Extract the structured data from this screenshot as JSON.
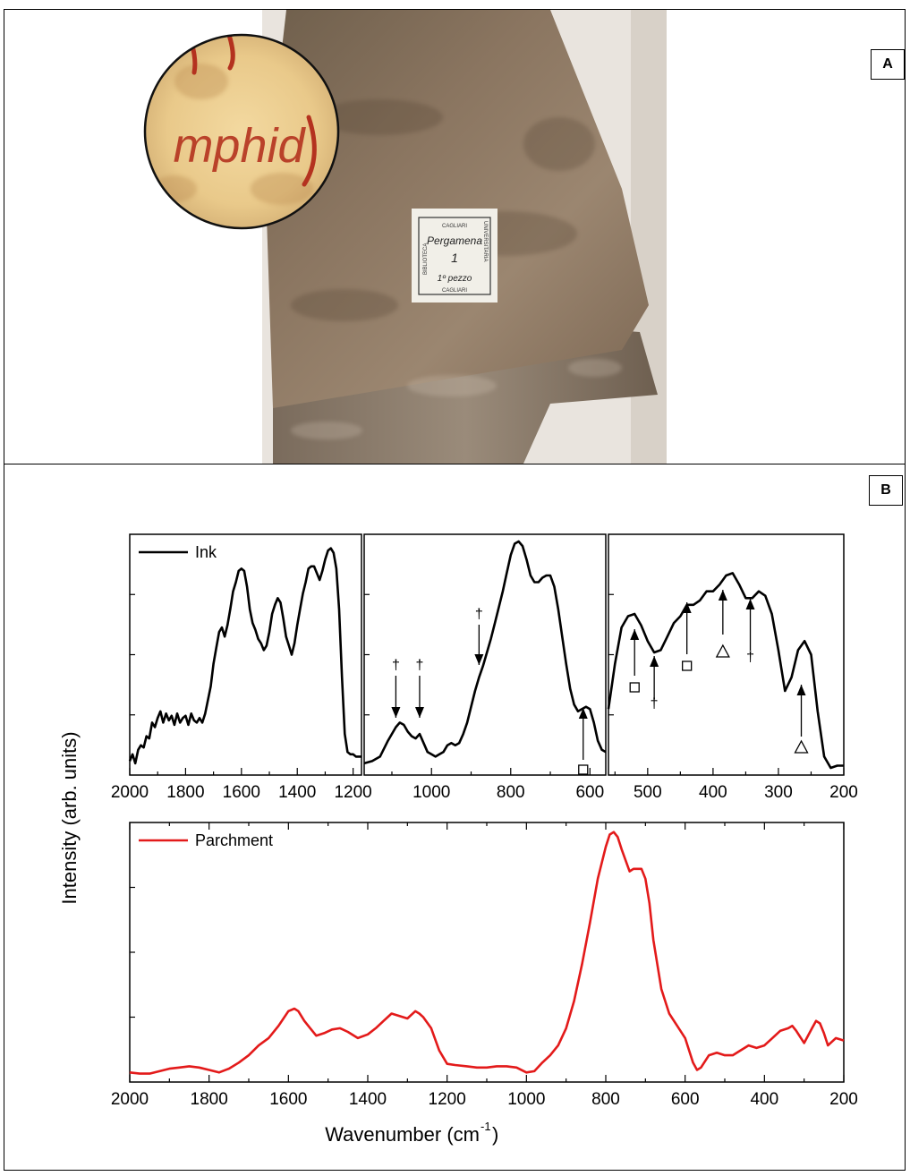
{
  "panel_a": {
    "tag": "A",
    "label_text": [
      "CAGLIARI",
      "BIBLIOTECA",
      "UNIVERSITARIA",
      "Pergamena",
      "1",
      "1º pezzo",
      "CAGLIARI"
    ],
    "inset_text": "mphid",
    "colors": {
      "parchment": "#8f7a62",
      "parchment_dark": "#6e5a46",
      "ink": "#b4321f"
    }
  },
  "panel_b": {
    "tag": "B",
    "y_axis_label": "Intensity (arb. units)",
    "x_axis_label": "Wavenumber (cm",
    "x_axis_label_sup": "-1",
    "x_axis_label_end": ")"
  },
  "chart_data": [
    {
      "type": "line",
      "panel": "ink-1",
      "legend": "Ink",
      "color": "#000000",
      "xlim": [
        2000,
        1170
      ],
      "ylim": [
        0,
        1
      ],
      "ticks": [
        2000,
        1800,
        1600,
        1400,
        1200
      ],
      "x": [
        2000,
        1990,
        1980,
        1970,
        1960,
        1950,
        1940,
        1930,
        1920,
        1910,
        1900,
        1890,
        1880,
        1870,
        1860,
        1850,
        1840,
        1830,
        1820,
        1810,
        1800,
        1790,
        1780,
        1770,
        1760,
        1750,
        1740,
        1730,
        1720,
        1710,
        1700,
        1690,
        1680,
        1670,
        1660,
        1650,
        1640,
        1630,
        1620,
        1610,
        1600,
        1590,
        1580,
        1570,
        1560,
        1550,
        1540,
        1530,
        1520,
        1510,
        1500,
        1490,
        1480,
        1470,
        1460,
        1450,
        1440,
        1430,
        1420,
        1410,
        1400,
        1390,
        1380,
        1370,
        1360,
        1350,
        1340,
        1330,
        1320,
        1310,
        1300,
        1290,
        1280,
        1270,
        1260,
        1250,
        1240,
        1230,
        1220,
        1210,
        1200,
        1190,
        1180,
        1170
      ],
      "y": [
        0.03,
        0.06,
        0.02,
        0.08,
        0.1,
        0.09,
        0.14,
        0.13,
        0.2,
        0.18,
        0.22,
        0.25,
        0.2,
        0.24,
        0.21,
        0.23,
        0.19,
        0.24,
        0.2,
        0.22,
        0.23,
        0.19,
        0.24,
        0.21,
        0.2,
        0.22,
        0.2,
        0.24,
        0.3,
        0.36,
        0.46,
        0.53,
        0.6,
        0.62,
        0.58,
        0.63,
        0.7,
        0.78,
        0.82,
        0.87,
        0.88,
        0.87,
        0.8,
        0.7,
        0.64,
        0.61,
        0.57,
        0.55,
        0.52,
        0.54,
        0.6,
        0.68,
        0.72,
        0.75,
        0.73,
        0.66,
        0.58,
        0.54,
        0.5,
        0.55,
        0.63,
        0.7,
        0.77,
        0.82,
        0.88,
        0.89,
        0.89,
        0.86,
        0.83,
        0.87,
        0.92,
        0.96,
        0.97,
        0.95,
        0.88,
        0.7,
        0.4,
        0.15,
        0.07,
        0.06,
        0.06,
        0.05,
        0.05,
        0.05
      ]
    },
    {
      "type": "line",
      "panel": "ink-2",
      "color": "#000000",
      "xlim": [
        1170,
        560
      ],
      "ylim": [
        0,
        1
      ],
      "ticks": [
        1000,
        800,
        600
      ],
      "x": [
        1170,
        1150,
        1130,
        1110,
        1090,
        1080,
        1070,
        1060,
        1050,
        1040,
        1030,
        1020,
        1010,
        1000,
        990,
        980,
        970,
        960,
        950,
        940,
        930,
        920,
        910,
        900,
        890,
        880,
        870,
        860,
        850,
        840,
        830,
        820,
        810,
        800,
        790,
        780,
        770,
        760,
        750,
        740,
        730,
        720,
        710,
        700,
        690,
        680,
        670,
        660,
        650,
        640,
        630,
        620,
        610,
        600,
        590,
        580,
        570,
        560
      ],
      "y": [
        0.02,
        0.03,
        0.05,
        0.12,
        0.18,
        0.2,
        0.19,
        0.16,
        0.14,
        0.13,
        0.15,
        0.11,
        0.07,
        0.06,
        0.05,
        0.06,
        0.07,
        0.1,
        0.11,
        0.1,
        0.11,
        0.15,
        0.2,
        0.27,
        0.34,
        0.4,
        0.45,
        0.51,
        0.57,
        0.64,
        0.71,
        0.78,
        0.86,
        0.94,
        0.99,
        1.0,
        0.98,
        0.92,
        0.85,
        0.82,
        0.82,
        0.84,
        0.85,
        0.85,
        0.8,
        0.7,
        0.58,
        0.46,
        0.35,
        0.28,
        0.25,
        0.26,
        0.27,
        0.26,
        0.2,
        0.12,
        0.08,
        0.07
      ]
    },
    {
      "type": "line",
      "panel": "ink-3",
      "color": "#000000",
      "xlim": [
        560,
        200
      ],
      "ylim": [
        0,
        1
      ],
      "ticks": [
        500,
        400,
        300,
        200
      ],
      "x": [
        560,
        550,
        540,
        530,
        520,
        510,
        500,
        490,
        480,
        470,
        460,
        450,
        440,
        430,
        420,
        410,
        400,
        390,
        380,
        370,
        360,
        350,
        340,
        330,
        320,
        310,
        300,
        290,
        280,
        270,
        260,
        250,
        240,
        230,
        220,
        210,
        200
      ],
      "y": [
        0.26,
        0.46,
        0.62,
        0.67,
        0.68,
        0.63,
        0.56,
        0.51,
        0.52,
        0.58,
        0.64,
        0.67,
        0.72,
        0.72,
        0.74,
        0.78,
        0.78,
        0.81,
        0.85,
        0.86,
        0.81,
        0.75,
        0.75,
        0.78,
        0.76,
        0.68,
        0.52,
        0.34,
        0.4,
        0.52,
        0.56,
        0.5,
        0.25,
        0.05,
        0.0,
        0.01,
        0.01
      ]
    },
    {
      "type": "line",
      "panel": "parchment",
      "legend": "Parchment",
      "color": "#e31a1a",
      "xlim": [
        2000,
        200
      ],
      "ylim": [
        0,
        1
      ],
      "ticks": [
        2000,
        1800,
        1600,
        1400,
        1200,
        1000,
        800,
        600,
        400,
        200
      ],
      "x": [
        2000,
        1975,
        1950,
        1925,
        1900,
        1875,
        1850,
        1825,
        1800,
        1775,
        1750,
        1725,
        1700,
        1675,
        1650,
        1625,
        1600,
        1585,
        1575,
        1560,
        1545,
        1530,
        1510,
        1490,
        1470,
        1450,
        1425,
        1400,
        1380,
        1360,
        1340,
        1320,
        1300,
        1280,
        1270,
        1260,
        1240,
        1220,
        1200,
        1180,
        1150,
        1125,
        1100,
        1075,
        1050,
        1025,
        1000,
        980,
        960,
        940,
        920,
        900,
        880,
        860,
        840,
        820,
        800,
        790,
        780,
        770,
        760,
        740,
        730,
        720,
        710,
        700,
        690,
        680,
        660,
        640,
        620,
        600,
        590,
        580,
        570,
        560,
        540,
        520,
        500,
        480,
        460,
        440,
        420,
        400,
        380,
        360,
        340,
        330,
        320,
        300,
        280,
        270,
        260,
        250,
        240,
        220,
        200
      ],
      "y": [
        0.01,
        0.005,
        0.005,
        0.015,
        0.025,
        0.03,
        0.035,
        0.03,
        0.02,
        0.01,
        0.025,
        0.05,
        0.08,
        0.12,
        0.15,
        0.2,
        0.26,
        0.27,
        0.26,
        0.22,
        0.19,
        0.16,
        0.17,
        0.185,
        0.19,
        0.175,
        0.15,
        0.165,
        0.19,
        0.22,
        0.25,
        0.24,
        0.23,
        0.26,
        0.25,
        0.235,
        0.19,
        0.1,
        0.045,
        0.04,
        0.035,
        0.03,
        0.03,
        0.035,
        0.035,
        0.03,
        0.01,
        0.015,
        0.05,
        0.08,
        0.12,
        0.19,
        0.3,
        0.45,
        0.62,
        0.8,
        0.93,
        0.98,
        0.99,
        0.97,
        0.92,
        0.83,
        0.84,
        0.84,
        0.84,
        0.8,
        0.7,
        0.55,
        0.35,
        0.25,
        0.2,
        0.15,
        0.1,
        0.05,
        0.02,
        0.03,
        0.08,
        0.09,
        0.08,
        0.08,
        0.1,
        0.12,
        0.11,
        0.12,
        0.15,
        0.18,
        0.19,
        0.2,
        0.18,
        0.13,
        0.19,
        0.22,
        0.21,
        0.17,
        0.12,
        0.15,
        0.14
      ]
    }
  ]
}
